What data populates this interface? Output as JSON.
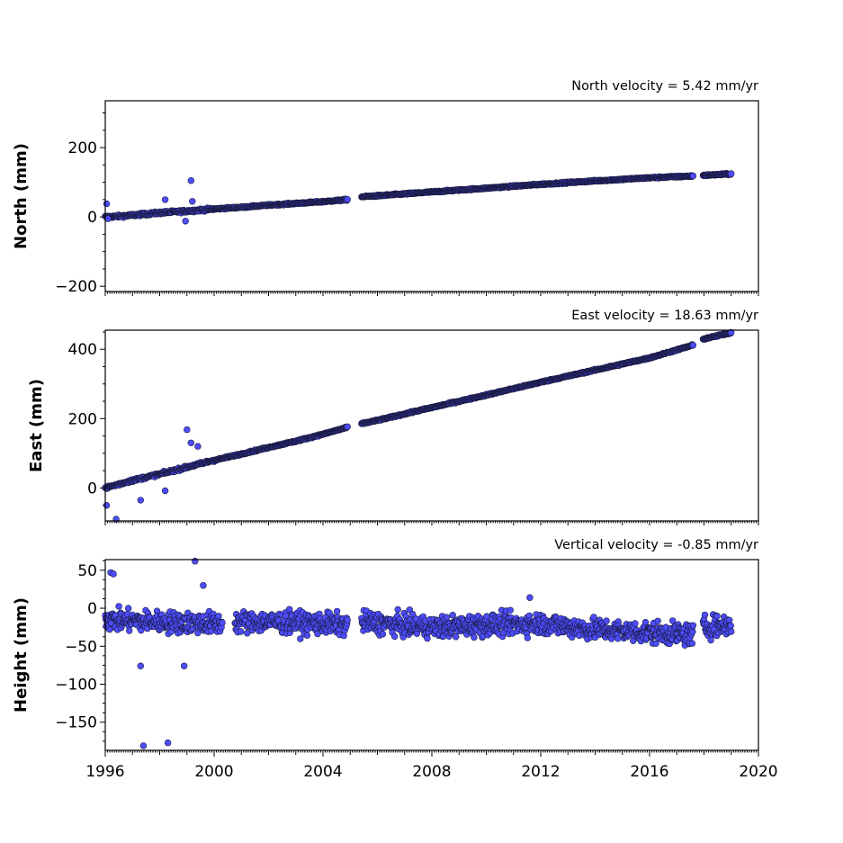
{
  "colors": {
    "marker_fill": "#4d4dff",
    "marker_edge": "#1a1a40",
    "axes": "#000000",
    "background": "#ffffff"
  },
  "chart_data": [
    {
      "type": "scatter",
      "name": "north",
      "title": "North velocity = 5.42 mm/yr",
      "ylabel": "North (mm)",
      "xlabel": "",
      "xlim": [
        1996,
        2020
      ],
      "ylim": [
        -215,
        335
      ],
      "yticks": [
        -200,
        0,
        200
      ],
      "ytick_labels": [
        "−200",
        "0",
        "200"
      ],
      "velocity_mm_per_yr": 5.42,
      "gaps": [
        [
          2004.9,
          2005.4
        ],
        [
          2017.6,
          2017.95
        ]
      ],
      "points": [
        {
          "x": 1996.0,
          "y": 0
        },
        {
          "x": 1996.5,
          "y": 2
        },
        {
          "x": 1997.0,
          "y": 5
        },
        {
          "x": 1998.0,
          "y": 12
        },
        {
          "x": 1999.0,
          "y": 17
        },
        {
          "x": 2000.0,
          "y": 23
        },
        {
          "x": 2001.0,
          "y": 28
        },
        {
          "x": 2002.0,
          "y": 34
        },
        {
          "x": 2003.0,
          "y": 39
        },
        {
          "x": 2004.0,
          "y": 44
        },
        {
          "x": 2004.9,
          "y": 50
        },
        {
          "x": 2005.4,
          "y": 58
        },
        {
          "x": 2006.0,
          "y": 61
        },
        {
          "x": 2008.0,
          "y": 72
        },
        {
          "x": 2010.0,
          "y": 83
        },
        {
          "x": 2012.0,
          "y": 94
        },
        {
          "x": 2014.0,
          "y": 104
        },
        {
          "x": 2016.0,
          "y": 113
        },
        {
          "x": 2017.6,
          "y": 118
        },
        {
          "x": 2018.0,
          "y": 120
        },
        {
          "x": 2019.0,
          "y": 124
        }
      ],
      "outliers": [
        {
          "x": 1996.05,
          "y": 38
        },
        {
          "x": 1996.1,
          "y": -5
        },
        {
          "x": 1998.2,
          "y": 50
        },
        {
          "x": 1998.95,
          "y": -12
        },
        {
          "x": 1999.15,
          "y": 105
        },
        {
          "x": 1999.2,
          "y": 45
        }
      ]
    },
    {
      "type": "scatter",
      "name": "east",
      "title": "East velocity = 18.63 mm/yr",
      "ylabel": "East (mm)",
      "xlabel": "",
      "xlim": [
        1996,
        2020
      ],
      "ylim": [
        -95,
        455
      ],
      "yticks": [
        0,
        200,
        400
      ],
      "ytick_labels": [
        "0",
        "200",
        "400"
      ],
      "velocity_mm_per_yr": 18.63,
      "gaps": [
        [
          2004.9,
          2005.4
        ],
        [
          2017.6,
          2017.95
        ]
      ],
      "points": [
        {
          "x": 1996.0,
          "y": 0
        },
        {
          "x": 1997.0,
          "y": 22
        },
        {
          "x": 1998.0,
          "y": 40
        },
        {
          "x": 1999.0,
          "y": 60
        },
        {
          "x": 2000.0,
          "y": 80
        },
        {
          "x": 2001.0,
          "y": 98
        },
        {
          "x": 2002.0,
          "y": 117
        },
        {
          "x": 2003.0,
          "y": 135
        },
        {
          "x": 2004.0,
          "y": 155
        },
        {
          "x": 2004.9,
          "y": 175
        },
        {
          "x": 2005.4,
          "y": 185
        },
        {
          "x": 2006.0,
          "y": 195
        },
        {
          "x": 2008.0,
          "y": 232
        },
        {
          "x": 2010.0,
          "y": 268
        },
        {
          "x": 2012.0,
          "y": 305
        },
        {
          "x": 2014.0,
          "y": 340
        },
        {
          "x": 2016.0,
          "y": 375
        },
        {
          "x": 2017.6,
          "y": 412
        },
        {
          "x": 2018.0,
          "y": 430
        },
        {
          "x": 2019.0,
          "y": 448
        }
      ],
      "outliers": [
        {
          "x": 1996.05,
          "y": -50
        },
        {
          "x": 1996.4,
          "y": -90
        },
        {
          "x": 1997.3,
          "y": -35
        },
        {
          "x": 1998.2,
          "y": -8
        },
        {
          "x": 1999.0,
          "y": 168
        },
        {
          "x": 1999.4,
          "y": 120
        },
        {
          "x": 1999.15,
          "y": 130
        }
      ]
    },
    {
      "type": "scatter",
      "name": "height",
      "title": "Vertical velocity = -0.85 mm/yr",
      "ylabel": "Height (mm)",
      "xlabel": "",
      "xlim": [
        1996,
        2020
      ],
      "ylim": [
        -187,
        64
      ],
      "yticks": [
        -150,
        -100,
        -50,
        0,
        50
      ],
      "ytick_labels": [
        "−150",
        "−100",
        "−50",
        "0",
        "50"
      ],
      "xticks": [
        1996,
        2000,
        2004,
        2008,
        2012,
        2016,
        2020
      ],
      "xtick_labels": [
        "1996",
        "2000",
        "2004",
        "2008",
        "2012",
        "2016",
        "2020"
      ],
      "velocity_mm_per_yr": -0.85,
      "gaps": [
        [
          2000.3,
          2000.75
        ],
        [
          2004.9,
          2005.4
        ],
        [
          2017.6,
          2017.95
        ]
      ],
      "points": [
        {
          "x": 1996.0,
          "y": -15
        },
        {
          "x": 1998.0,
          "y": -18
        },
        {
          "x": 2000.3,
          "y": -20
        },
        {
          "x": 2000.75,
          "y": -18
        },
        {
          "x": 2002.0,
          "y": -18
        },
        {
          "x": 2004.0,
          "y": -20
        },
        {
          "x": 2004.9,
          "y": -22
        },
        {
          "x": 2005.4,
          "y": -18
        },
        {
          "x": 2008.0,
          "y": -25
        },
        {
          "x": 2010.0,
          "y": -22
        },
        {
          "x": 2012.0,
          "y": -20
        },
        {
          "x": 2014.0,
          "y": -28
        },
        {
          "x": 2016.0,
          "y": -32
        },
        {
          "x": 2017.6,
          "y": -35
        },
        {
          "x": 2017.95,
          "y": -25
        },
        {
          "x": 2019.0,
          "y": -22
        }
      ],
      "spread_mm": 24,
      "outliers": [
        {
          "x": 1996.2,
          "y": 47
        },
        {
          "x": 1996.3,
          "y": 45
        },
        {
          "x": 1997.3,
          "y": -76
        },
        {
          "x": 1997.4,
          "y": -181
        },
        {
          "x": 1998.3,
          "y": -177
        },
        {
          "x": 1998.9,
          "y": -76
        },
        {
          "x": 1999.3,
          "y": 62
        },
        {
          "x": 1999.6,
          "y": 30
        },
        {
          "x": 2011.6,
          "y": 14
        }
      ]
    }
  ]
}
